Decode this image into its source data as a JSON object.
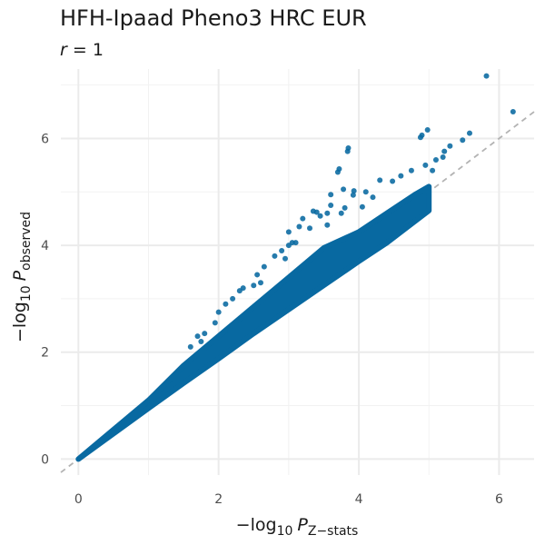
{
  "chart_data": {
    "type": "scatter",
    "title": "HFH-Ipaad Pheno3 HRC EUR",
    "subtitle": {
      "symbol": "r",
      "operator": " = ",
      "value": "1"
    },
    "xlabel": {
      "prefix": "−log",
      "base": "10",
      "symbol": "P",
      "subscript": "Z−stats"
    },
    "ylabel": {
      "prefix": "−log",
      "base": "10",
      "symbol": "P",
      "subscript": "observed"
    },
    "xlim": [
      -0.25,
      6.5
    ],
    "ylim": [
      -0.3,
      7.3
    ],
    "x_ticks": [
      0,
      2,
      4,
      6
    ],
    "y_ticks": [
      0,
      2,
      4,
      6
    ],
    "grid": true,
    "reference_line": {
      "slope": 1,
      "intercept": 0,
      "style": "dashed",
      "color": "#b3b3b3"
    },
    "point_color": "#0869a1",
    "bulk_band": [
      [
        0,
        0,
        0
      ],
      [
        1.0,
        0.95,
        1.1
      ],
      [
        1.5,
        1.42,
        1.75
      ],
      [
        2.0,
        1.88,
        2.3
      ],
      [
        2.5,
        2.35,
        2.85
      ],
      [
        3.0,
        2.8,
        3.4
      ],
      [
        3.5,
        3.25,
        3.95
      ],
      [
        4.0,
        3.7,
        4.25
      ],
      [
        4.4,
        4.05,
        4.6
      ],
      [
        4.8,
        4.45,
        4.95
      ],
      [
        5.0,
        4.65,
        5.1
      ]
    ],
    "points": [
      [
        5.82,
        7.17
      ],
      [
        6.2,
        6.5
      ],
      [
        4.88,
        6.02
      ],
      [
        4.9,
        6.06
      ],
      [
        4.98,
        6.16
      ],
      [
        5.58,
        6.1
      ],
      [
        5.48,
        5.97
      ],
      [
        5.3,
        5.86
      ],
      [
        5.22,
        5.76
      ],
      [
        3.85,
        5.82
      ],
      [
        3.84,
        5.76
      ],
      [
        5.1,
        5.6
      ],
      [
        5.2,
        5.65
      ],
      [
        3.72,
        5.43
      ],
      [
        3.7,
        5.37
      ],
      [
        4.75,
        5.4
      ],
      [
        4.95,
        5.5
      ],
      [
        4.3,
        5.22
      ],
      [
        5.05,
        5.4
      ],
      [
        3.78,
        5.05
      ],
      [
        4.48,
        5.2
      ],
      [
        3.93,
        5.02
      ],
      [
        3.92,
        4.94
      ],
      [
        3.6,
        4.95
      ],
      [
        4.1,
        5.0
      ],
      [
        3.6,
        4.75
      ],
      [
        3.8,
        4.7
      ],
      [
        3.35,
        4.64
      ],
      [
        4.05,
        4.72
      ],
      [
        3.55,
        4.6
      ],
      [
        3.45,
        4.55
      ],
      [
        3.75,
        4.6
      ],
      [
        3.15,
        4.35
      ],
      [
        3.55,
        4.38
      ],
      [
        3.0,
        4.25
      ],
      [
        3.3,
        4.32
      ],
      [
        3.05,
        4.05
      ],
      [
        3.1,
        4.05
      ],
      [
        3.0,
        4.0
      ],
      [
        2.9,
        3.9
      ],
      [
        2.8,
        3.8
      ],
      [
        2.65,
        3.6
      ],
      [
        2.95,
        3.75
      ],
      [
        2.6,
        3.3
      ],
      [
        2.5,
        3.25
      ],
      [
        2.55,
        3.45
      ],
      [
        2.2,
        3.0
      ],
      [
        2.3,
        3.15
      ],
      [
        2.1,
        2.9
      ],
      [
        2.0,
        2.75
      ],
      [
        2.35,
        3.2
      ],
      [
        1.95,
        2.55
      ],
      [
        1.8,
        2.35
      ],
      [
        1.7,
        2.3
      ],
      [
        1.6,
        2.1
      ],
      [
        1.75,
        2.2
      ],
      [
        3.4,
        4.62
      ],
      [
        3.2,
        4.5
      ],
      [
        4.6,
        5.3
      ],
      [
        4.2,
        4.9
      ]
    ]
  }
}
